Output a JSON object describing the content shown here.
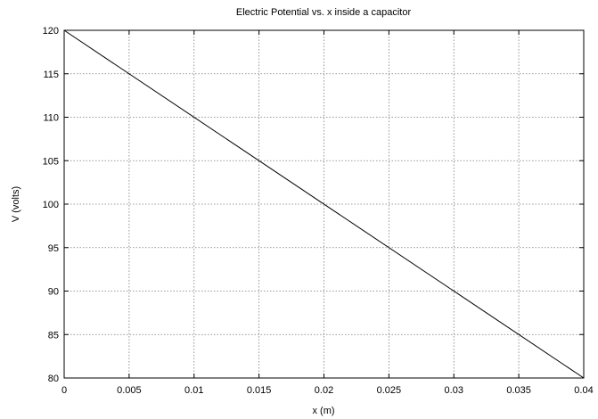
{
  "chart_data": {
    "type": "line",
    "title": "Electric Potential vs. x inside a capacitor",
    "xlabel": "x (m)",
    "ylabel": "V (volts)",
    "xlim": [
      0,
      0.04
    ],
    "ylim": [
      80,
      120
    ],
    "xticks": [
      0,
      0.005,
      0.01,
      0.015,
      0.02,
      0.025,
      0.03,
      0.035,
      0.04
    ],
    "xtick_labels": [
      "0",
      "0.005",
      "0.01",
      "0.015",
      "0.02",
      "0.025",
      "0.03",
      "0.035",
      "0.04"
    ],
    "yticks": [
      80,
      85,
      90,
      95,
      100,
      105,
      110,
      115,
      120
    ],
    "ytick_labels": [
      "80",
      "85",
      "90",
      "95",
      "100",
      "105",
      "110",
      "115",
      "120"
    ],
    "grid": true,
    "series": [
      {
        "x": [
          0,
          0.04
        ],
        "y": [
          120,
          80
        ],
        "color": "#000000"
      }
    ]
  }
}
